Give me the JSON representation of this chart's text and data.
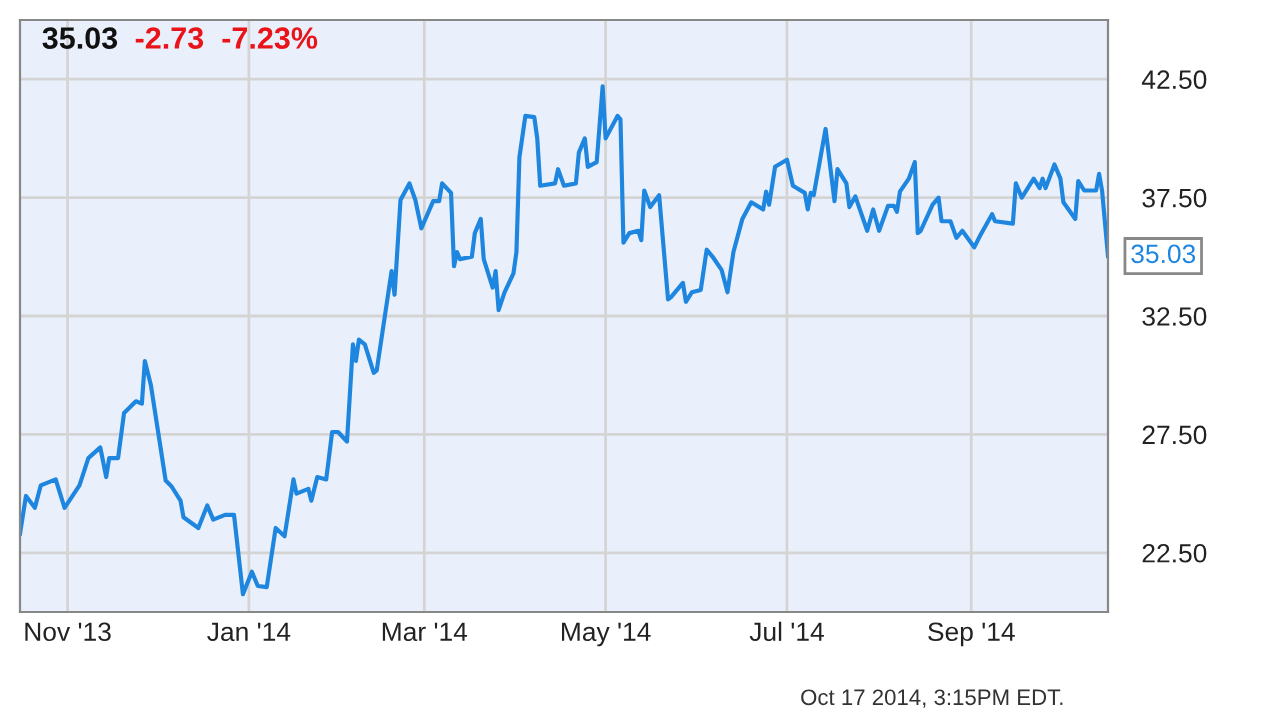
{
  "chart_data": {
    "type": "line",
    "title": "35.03",
    "subtitle": "-2.73  -7.23%",
    "x": [
      "2013-10-16",
      "2013-10-18",
      "2013-10-21",
      "2013-10-23",
      "2013-10-28",
      "2013-10-31",
      "2013-11-05",
      "2013-11-08",
      "2013-11-12",
      "2013-11-14",
      "2013-11-15",
      "2013-11-18",
      "2013-11-20",
      "2013-11-24",
      "2013-11-26",
      "2013-11-27",
      "2013-11-29",
      "2013-12-04",
      "2013-12-06",
      "2013-12-09",
      "2013-12-10",
      "2013-12-15",
      "2013-12-18",
      "2013-12-20",
      "2013-12-24",
      "2013-12-27",
      "2013-12-30",
      "2014-01-02",
      "2014-01-04",
      "2014-01-07",
      "2014-01-10",
      "2014-01-13",
      "2014-01-16",
      "2014-01-17",
      "2014-01-21",
      "2014-01-22",
      "2014-01-24",
      "2014-01-27",
      "2014-01-29",
      "2014-01-31",
      "2014-02-03",
      "2014-02-05",
      "2014-02-06",
      "2014-02-07",
      "2014-02-09",
      "2014-02-12",
      "2014-02-13",
      "2014-02-18",
      "2014-02-19",
      "2014-02-21",
      "2014-02-24",
      "2014-02-26",
      "2014-02-28",
      "2014-03-04",
      "2014-03-06",
      "2014-03-07",
      "2014-03-10",
      "2014-03-11",
      "2014-03-12",
      "2014-03-13",
      "2014-03-17",
      "2014-03-18",
      "2014-03-20",
      "2014-03-21",
      "2014-03-24",
      "2014-03-25",
      "2014-03-26",
      "2014-03-28",
      "2014-03-31",
      "2014-04-01",
      "2014-04-02",
      "2014-04-04",
      "2014-04-07",
      "2014-04-08",
      "2014-04-09",
      "2014-04-14",
      "2014-04-15",
      "2014-04-17",
      "2014-04-21",
      "2014-04-22",
      "2014-04-24",
      "2014-04-25",
      "2014-04-28",
      "2014-04-30",
      "2014-05-01",
      "2014-05-05",
      "2014-05-06",
      "2014-05-07",
      "2014-05-09",
      "2014-05-12",
      "2014-05-13",
      "2014-05-14",
      "2014-05-16",
      "2014-05-19",
      "2014-05-22",
      "2014-05-23",
      "2014-05-27",
      "2014-05-28",
      "2014-05-30",
      "2014-06-02",
      "2014-06-04",
      "2014-06-06",
      "2014-06-09",
      "2014-06-11",
      "2014-06-13",
      "2014-06-16",
      "2014-06-19",
      "2014-06-23",
      "2014-06-24",
      "2014-06-25",
      "2014-06-27",
      "2014-07-01",
      "2014-07-03",
      "2014-07-07",
      "2014-07-08",
      "2014-07-09",
      "2014-07-10",
      "2014-07-14",
      "2014-07-17",
      "2014-07-18",
      "2014-07-21",
      "2014-07-22",
      "2014-07-24",
      "2014-07-28",
      "2014-07-30",
      "2014-08-01",
      "2014-08-04",
      "2014-08-06",
      "2014-08-07",
      "2014-08-08",
      "2014-08-11",
      "2014-08-13",
      "2014-08-14",
      "2014-08-15",
      "2014-08-19",
      "2014-08-21",
      "2014-08-22",
      "2014-08-25",
      "2014-08-27",
      "2014-08-29",
      "2014-09-02",
      "2014-09-04",
      "2014-09-08",
      "2014-09-09",
      "2014-09-15",
      "2014-09-16",
      "2014-09-18",
      "2014-09-22",
      "2014-09-24",
      "2014-09-25",
      "2014-09-26",
      "2014-09-29",
      "2014-10-01",
      "2014-10-02",
      "2014-10-06",
      "2014-10-07",
      "2014-10-09",
      "2014-10-13",
      "2014-10-14",
      "2014-10-15",
      "2014-10-17"
    ],
    "series": [
      {
        "color": "#1f86e0",
        "values": [
          23.3,
          24.9,
          24.4,
          25.35,
          25.6,
          24.4,
          25.35,
          26.5,
          26.95,
          25.7,
          26.5,
          26.5,
          28.4,
          28.9,
          28.8,
          30.6,
          29.6,
          25.55,
          25.3,
          24.7,
          24.0,
          23.55,
          24.5,
          23.9,
          24.1,
          24.1,
          20.75,
          21.7,
          21.1,
          21.05,
          23.55,
          23.2,
          25.6,
          25.0,
          25.2,
          24.7,
          25.7,
          25.6,
          27.6,
          27.6,
          27.2,
          31.3,
          30.6,
          31.5,
          31.3,
          30.1,
          30.2,
          34.4,
          33.4,
          37.4,
          38.1,
          37.4,
          36.2,
          37.35,
          37.35,
          38.1,
          37.7,
          34.6,
          35.2,
          34.9,
          35.0,
          36.0,
          36.6,
          34.9,
          33.7,
          34.4,
          32.75,
          33.5,
          34.3,
          35.2,
          39.2,
          40.95,
          40.9,
          40.0,
          38.0,
          38.1,
          38.7,
          38.0,
          38.1,
          39.4,
          40.0,
          38.8,
          39.0,
          42.2,
          40.0,
          40.95,
          40.8,
          35.6,
          36.0,
          36.1,
          35.7,
          37.8,
          37.1,
          37.6,
          33.2,
          33.3,
          33.9,
          33.1,
          33.5,
          33.6,
          35.3,
          35.0,
          34.45,
          33.5,
          35.2,
          36.6,
          37.3,
          37.0,
          37.75,
          37.2,
          38.8,
          39.1,
          38.0,
          37.7,
          37.0,
          37.7,
          37.6,
          40.4,
          37.35,
          38.7,
          38.1,
          37.1,
          37.55,
          36.1,
          37.0,
          36.1,
          37.15,
          37.15,
          36.9,
          37.75,
          38.3,
          39.0,
          36.0,
          36.1,
          37.2,
          37.5,
          36.5,
          36.5,
          35.8,
          36.1,
          35.4,
          35.9,
          36.8,
          36.5,
          36.4,
          38.1,
          37.5,
          38.3,
          37.9,
          38.3,
          37.9,
          38.9,
          38.3,
          37.3,
          36.6,
          38.2,
          37.8,
          37.8,
          38.5,
          37.8,
          35.03
        ]
      }
    ],
    "xlim": [
      "2013-10-16",
      "2014-10-17"
    ],
    "xticks": [
      {
        "value": "2013-11-01",
        "label": "Nov '13"
      },
      {
        "value": "2014-01-01",
        "label": "Jan '14"
      },
      {
        "value": "2014-03-01",
        "label": "Mar '14"
      },
      {
        "value": "2014-05-01",
        "label": "May '14"
      },
      {
        "value": "2014-07-01",
        "label": "Jul '14"
      },
      {
        "value": "2014-09-01",
        "label": "Sep '14"
      }
    ],
    "ylim": [
      20,
      45
    ],
    "yticks": [
      {
        "value": 22.5,
        "label": "22.50"
      },
      {
        "value": 27.5,
        "label": "27.50"
      },
      {
        "value": 32.5,
        "label": "32.50"
      },
      {
        "value": 37.5,
        "label": "37.50"
      },
      {
        "value": 42.5,
        "label": "42.50"
      }
    ],
    "annotations": [
      {
        "text": "35.03",
        "x": "2014-10-17",
        "y": 35.03
      },
      "Oct 17 2014, 3:15PM EDT."
    ],
    "grid": true,
    "legend": false,
    "marker": "none",
    "line_style": "solid"
  }
}
